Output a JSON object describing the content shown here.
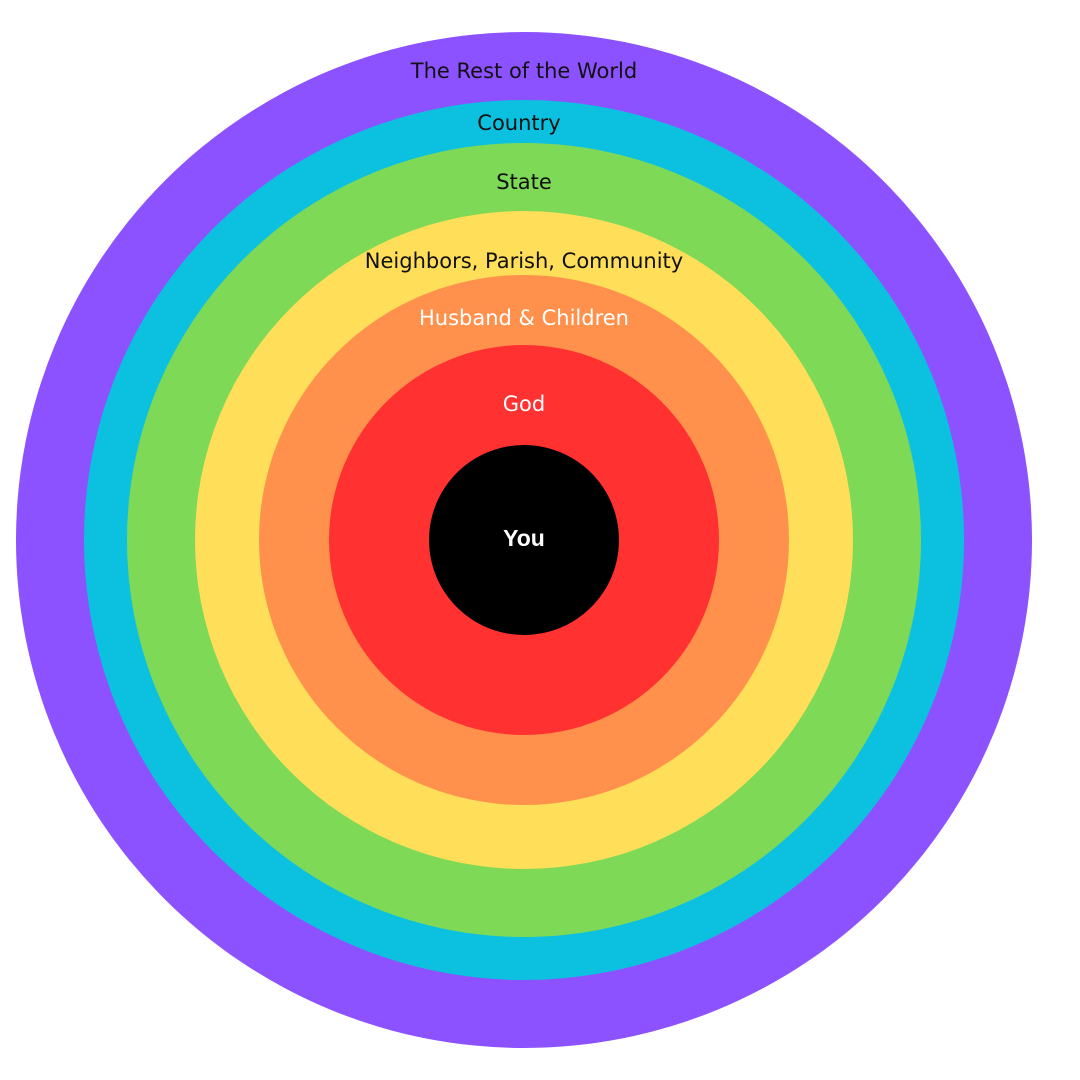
{
  "rings": [
    "The Rest of the World",
    "Country",
    "State",
    "Neighbors, Parish, Community",
    "Husband & Children",
    "God"
  ],
  "center": "You"
}
